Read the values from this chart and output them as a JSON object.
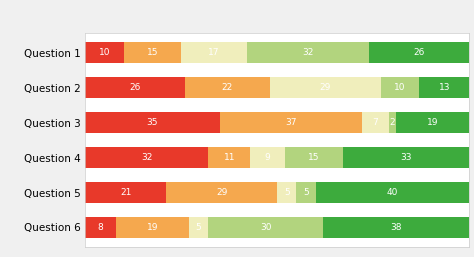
{
  "categories": [
    "Question 1",
    "Question 2",
    "Question 3",
    "Question 4",
    "Question 5",
    "Question 6"
  ],
  "series": {
    "Strongly disagree": [
      10,
      26,
      35,
      32,
      21,
      8
    ],
    "Disagree": [
      15,
      22,
      37,
      11,
      29,
      19
    ],
    "Neither agree nor disagree": [
      17,
      29,
      7,
      9,
      5,
      5
    ],
    "Agree": [
      32,
      10,
      2,
      15,
      5,
      30
    ],
    "Strongly agree": [
      26,
      13,
      19,
      33,
      40,
      38
    ]
  },
  "colors": {
    "Strongly disagree": "#e8392a",
    "Disagree": "#f5a84e",
    "Neither agree nor disagree": "#f0eebc",
    "Agree": "#b2d47e",
    "Strongly agree": "#3dab3d"
  },
  "text_color": "white",
  "figure_bg": "#f0f0f0",
  "axes_bg": "#ffffff",
  "bar_height": 0.62,
  "figsize": [
    4.74,
    2.57
  ],
  "dpi": 100,
  "legend_fontsize": 6.0,
  "ytick_fontsize": 7.5,
  "label_fontsize": 6.5
}
